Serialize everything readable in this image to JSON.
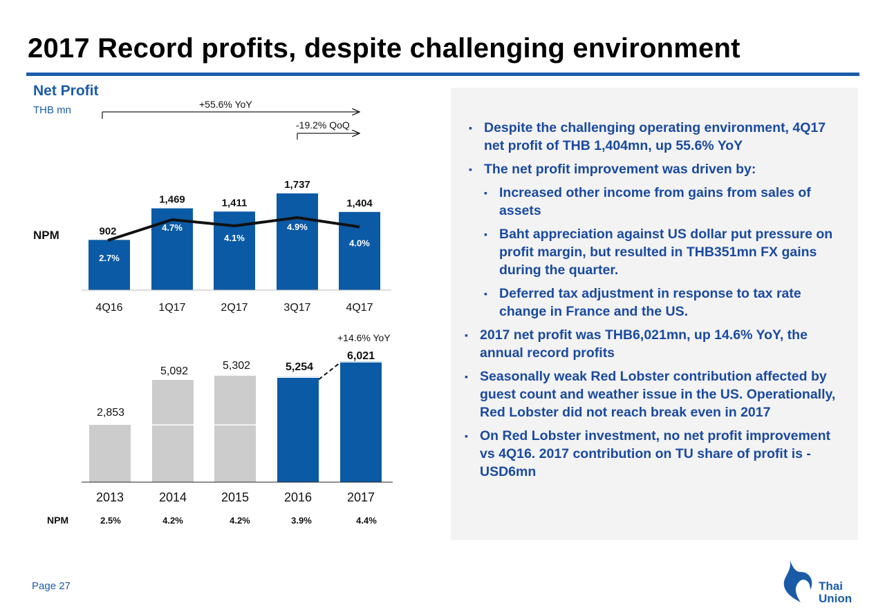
{
  "header": {
    "title": "2017 Record profits, despite challenging environment",
    "section_title": "Net Profit",
    "unit": "THB mn"
  },
  "chart_data": [
    {
      "type": "bar",
      "name": "quarterly-net-profit",
      "categories": [
        "4Q16",
        "1Q17",
        "2Q17",
        "3Q17",
        "4Q17"
      ],
      "values": [
        902,
        1469,
        1411,
        1737,
        1404
      ],
      "value_labels": [
        "902",
        "1,469",
        "1,411",
        "1,737",
        "1,404"
      ],
      "bar_color": "#0b5aa5",
      "npm_label": "NPM",
      "npm_line": {
        "type": "line",
        "values": [
          2.7,
          4.7,
          4.1,
          4.9,
          4.0
        ],
        "labels": [
          "2.7%",
          "4.7%",
          "4.1%",
          "4.9%",
          "4.0%"
        ]
      },
      "annotations": {
        "yoy": "+55.6% YoY",
        "qoq": "-19.2% QoQ"
      }
    },
    {
      "type": "bar",
      "name": "annual-net-profit",
      "categories": [
        "2013",
        "2014",
        "2015",
        "2016",
        "2017"
      ],
      "values": [
        2853,
        5092,
        5302,
        5254,
        6021
      ],
      "value_labels": [
        "2,853",
        "5,092",
        "5,302",
        "5,254",
        "6,021"
      ],
      "bar_colors": [
        "#cccccc",
        "#cccccc",
        "#cccccc",
        "#0b5aa5",
        "#0b5aa5"
      ],
      "reference_value": 2853,
      "npm_label": "NPM",
      "npm_row": [
        "2.5%",
        "4.2%",
        "4.2%",
        "3.9%",
        "4.4%"
      ],
      "annotations": {
        "yoy": "+14.6% YoY"
      }
    }
  ],
  "bullets": [
    {
      "level": 1,
      "text": "Despite the challenging operating environment, 4Q17 net profit of THB 1,404mn, up 55.6% YoY"
    },
    {
      "level": 1,
      "text": "The net profit improvement was driven by:"
    },
    {
      "level": 2,
      "text": "Increased other income from gains from sales of assets"
    },
    {
      "level": 2,
      "text": "Baht appreciation against US dollar put pressure on profit margin, but resulted in THB351mn FX gains during the quarter."
    },
    {
      "level": 2,
      "text": "Deferred tax adjustment in response to tax rate change in France and the US."
    },
    {
      "level": 0,
      "text": "2017 net profit was THB6,021mn, up 14.6% YoY, the annual record profits"
    },
    {
      "level": 0,
      "text": "Seasonally weak Red Lobster contribution affected by guest count and weather issue in the US. Operationally, Red Lobster did not reach break even in 2017"
    },
    {
      "level": 0,
      "text": "On Red Lobster investment, no net profit improvement vs 4Q16. 2017 contribution on TU share of profit is -USD6mn"
    }
  ],
  "footer": {
    "page_label": "Page 27",
    "logo_line1": "Thai",
    "logo_line2": "Union"
  },
  "colors": {
    "brand_blue": "#1a5ba8",
    "bar_blue": "#0b5aa5",
    "bar_grey": "#cccccc",
    "panel": "#f3f3f3"
  }
}
